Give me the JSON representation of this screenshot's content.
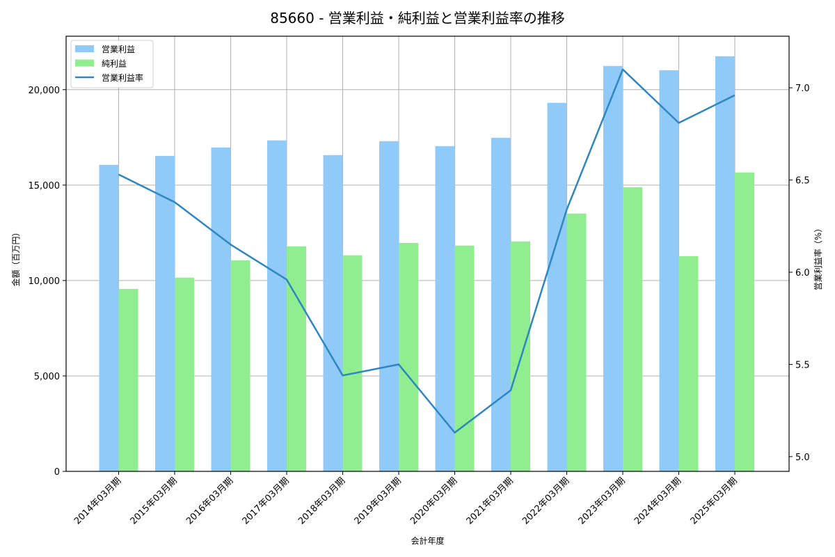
{
  "title": "85660 - 営業利益・純利益と営業利益率の推移",
  "colors": {
    "operating_income": "#90CAF9",
    "net_income": "#90EE90",
    "operating_margin": "#2E86C1",
    "grid": "#b0b0b0",
    "axis": "#000000"
  },
  "legend": [
    {
      "label": "営業利益",
      "type": "bar",
      "color": "#90CAF9"
    },
    {
      "label": "純利益",
      "type": "bar",
      "color": "#90EE90"
    },
    {
      "label": "営業利益率",
      "type": "line",
      "color": "#2E86C1"
    }
  ],
  "chart_data": {
    "type": "bar+line",
    "title": "85660 - 営業利益・純利益と営業利益率の推移",
    "xlabel": "会計年度",
    "ylabel": "金額（百万円）",
    "y2label": "営業利益率（%）",
    "categories": [
      "2014年03月期",
      "2015年03月期",
      "2016年03月期",
      "2017年03月期",
      "2018年03月期",
      "2019年03月期",
      "2020年03月期",
      "2021年03月期",
      "2022年03月期",
      "2023年03月期",
      "2024年03月期",
      "2025年03月期"
    ],
    "series": [
      {
        "name": "営業利益",
        "type": "bar",
        "axis": "left",
        "values": [
          16060,
          16530,
          16970,
          17340,
          16570,
          17300,
          17040,
          17480,
          19310,
          21240,
          21020,
          21750
        ]
      },
      {
        "name": "純利益",
        "type": "bar",
        "axis": "left",
        "values": [
          9560,
          10150,
          11060,
          11790,
          11320,
          11970,
          11830,
          12050,
          13510,
          14890,
          11280,
          15660
        ]
      },
      {
        "name": "営業利益率",
        "type": "line",
        "axis": "right",
        "values": [
          6.53,
          6.38,
          6.15,
          5.96,
          5.44,
          5.5,
          5.13,
          5.36,
          6.34,
          7.1,
          6.81,
          6.96
        ]
      }
    ],
    "ylim": [
      0,
      22800
    ],
    "y2lim": [
      4.92,
      7.28
    ],
    "yticks": [
      0,
      5000,
      10000,
      15000,
      20000
    ],
    "ytick_labels": [
      "0",
      "5,000",
      "10,000",
      "15,000",
      "20,000"
    ],
    "y2ticks": [
      5.0,
      5.5,
      6.0,
      6.5,
      7.0
    ],
    "y2tick_labels": [
      "5.0",
      "5.5",
      "6.0",
      "6.5",
      "7.0"
    ],
    "grid": true,
    "legend_position": "upper left"
  }
}
